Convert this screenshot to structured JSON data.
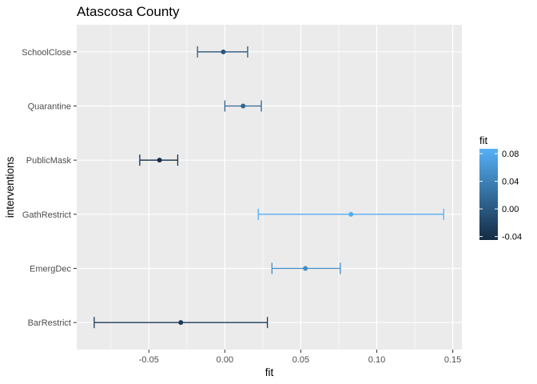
{
  "chart_data": {
    "type": "errorbar",
    "title": "Atascosa County",
    "xlabel": "fit",
    "ylabel": "interventions",
    "xlim": [
      -0.0975,
      0.156
    ],
    "x_ticks": [
      -0.05,
      0.0,
      0.05,
      0.1,
      0.15
    ],
    "x_tick_labels": [
      "-0.05",
      "0.00",
      "0.05",
      "0.10",
      "0.15"
    ],
    "categories_top_to_bottom": [
      "SchoolClose",
      "Quarantine",
      "PublicMask",
      "GathRestrict",
      "EmergDec",
      "BarRestrict"
    ],
    "points": [
      {
        "intervention": "SchoolClose",
        "fit": -0.001,
        "lower": -0.018,
        "upper": 0.015
      },
      {
        "intervention": "Quarantine",
        "fit": 0.012,
        "lower": 0.0,
        "upper": 0.024
      },
      {
        "intervention": "PublicMask",
        "fit": -0.043,
        "lower": -0.056,
        "upper": -0.031
      },
      {
        "intervention": "GathRestrict",
        "fit": 0.083,
        "lower": 0.022,
        "upper": 0.144
      },
      {
        "intervention": "EmergDec",
        "fit": 0.053,
        "lower": 0.031,
        "upper": 0.076
      },
      {
        "intervention": "BarRestrict",
        "fit": -0.029,
        "lower": -0.086,
        "upper": 0.028
      }
    ],
    "legend": {
      "title": "fit",
      "position": "right",
      "range": [
        -0.045,
        0.087
      ],
      "ticks": [
        -0.04,
        0.0,
        0.04,
        0.08
      ],
      "tick_labels": [
        "-0.04",
        "0.00",
        "0.04",
        "0.08"
      ],
      "color_low": "#132B43",
      "color_high": "#56B1F7"
    },
    "grid": true,
    "panel_background": "#EBEBEB"
  }
}
